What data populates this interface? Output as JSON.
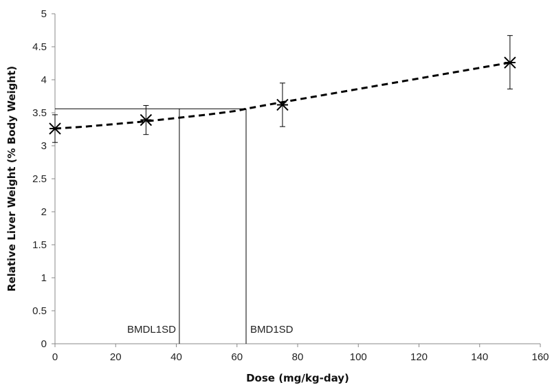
{
  "chart_data": {
    "type": "scatter",
    "title": "",
    "xlabel": "Dose (mg/kg-day)",
    "ylabel": "Relative Liver Weight (% Body Weight)",
    "xlim": [
      0,
      160
    ],
    "ylim": [
      0,
      5
    ],
    "xticks": [
      0,
      20,
      40,
      60,
      80,
      100,
      120,
      140,
      160
    ],
    "yticks": [
      0,
      0.5,
      1,
      1.5,
      2,
      2.5,
      3,
      3.5,
      4,
      4.5,
      5
    ],
    "grid": false,
    "legend": "none",
    "series": [
      {
        "marker": "asterisk",
        "x": [
          0,
          30,
          75,
          150
        ],
        "y": [
          3.26,
          3.39,
          3.62,
          4.26
        ],
        "yerr_low": [
          3.05,
          3.17,
          3.29,
          3.86
        ],
        "yerr_high": [
          3.47,
          3.61,
          3.95,
          4.67
        ]
      },
      {
        "style": "dashed",
        "color": "#000000",
        "x": [
          0,
          10,
          20,
          30,
          40,
          50,
          60,
          63,
          70,
          80,
          90,
          100,
          110,
          120,
          130,
          140,
          150
        ],
        "y": [
          3.26,
          3.29,
          3.33,
          3.37,
          3.42,
          3.47,
          3.53,
          3.56,
          3.62,
          3.7,
          3.78,
          3.86,
          3.94,
          4.02,
          4.1,
          4.18,
          4.26
        ]
      }
    ],
    "annotations": [
      {
        "text": "BMDL1SD",
        "x": 41,
        "y_top": 3.56
      },
      {
        "text": "BMD1SD",
        "x": 63,
        "y_top": 3.56
      }
    ],
    "bmr_level": 3.56
  }
}
